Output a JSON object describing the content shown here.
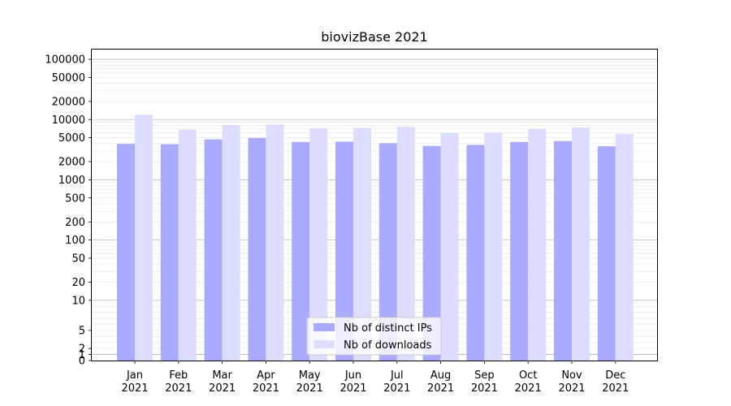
{
  "chart_data": {
    "type": "bar",
    "title": "biovizBase 2021",
    "xlabel": "",
    "ylabel": "",
    "y_scale": "symlog",
    "ylim": [
      0,
      150000
    ],
    "yticks": [
      "0",
      "1",
      "2",
      "5",
      "10",
      "20",
      "50",
      "100",
      "200",
      "500",
      "1000",
      "2000",
      "5000",
      "10000",
      "20000",
      "50000",
      "100000"
    ],
    "categories": [
      [
        "Jan",
        "2021"
      ],
      [
        "Feb",
        "2021"
      ],
      [
        "Mar",
        "2021"
      ],
      [
        "Apr",
        "2021"
      ],
      [
        "May",
        "2021"
      ],
      [
        "Jun",
        "2021"
      ],
      [
        "Jul",
        "2021"
      ],
      [
        "Aug",
        "2021"
      ],
      [
        "Sep",
        "2021"
      ],
      [
        "Oct",
        "2021"
      ],
      [
        "Nov",
        "2021"
      ],
      [
        "Dec",
        "2021"
      ]
    ],
    "series": [
      {
        "name": "Nb of distinct IPs",
        "color": "#aaaaff",
        "values": [
          3950,
          3900,
          4700,
          4950,
          4250,
          4300,
          4050,
          3650,
          3800,
          4250,
          4400,
          3600
        ]
      },
      {
        "name": "Nb of downloads",
        "color": "#ddddff",
        "values": [
          12000,
          6800,
          8100,
          8300,
          7200,
          7300,
          7600,
          6000,
          6100,
          7000,
          7400,
          5800
        ]
      }
    ],
    "grid": true,
    "legend_position": "bottom-center"
  }
}
